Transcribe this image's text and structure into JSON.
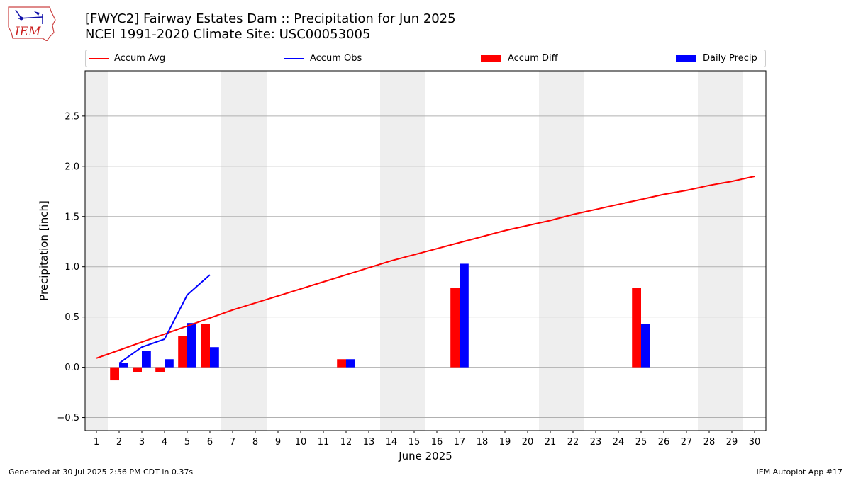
{
  "title": {
    "line1": "[FWYC2] Fairway Estates Dam :: Precipitation for Jun 2025",
    "line2": "NCEI 1991-2020 Climate Site: USC00053005"
  },
  "logo": {
    "text": "IEM"
  },
  "footer": {
    "left": "Generated at 30 Jul 2025 2:56 PM CDT in 0.37s",
    "right": "IEM Autoplot App #17"
  },
  "chart_data": {
    "type": "bar",
    "xlabel": "June 2025",
    "ylabel": "Precipitation [inch]",
    "xlim": [
      0.5,
      30.5
    ],
    "ylim": [
      -0.63,
      2.95
    ],
    "yticks": [
      -0.5,
      0.0,
      0.5,
      1.0,
      1.5,
      2.0,
      2.5
    ],
    "ytick_labels": [
      "−0.5",
      "0.0",
      "0.5",
      "1.0",
      "1.5",
      "2.0",
      "2.5"
    ],
    "xticks": [
      1,
      2,
      3,
      4,
      5,
      6,
      7,
      8,
      9,
      10,
      11,
      12,
      13,
      14,
      15,
      16,
      17,
      18,
      19,
      20,
      21,
      22,
      23,
      24,
      25,
      26,
      27,
      28,
      29,
      30
    ],
    "grid": "horizontal",
    "weekend_shading": [
      [
        0.5,
        1.5
      ],
      [
        6.5,
        8.5
      ],
      [
        13.5,
        15.5
      ],
      [
        20.5,
        22.5
      ],
      [
        27.5,
        29.5
      ]
    ],
    "legend": [
      {
        "name": "Accum Avg",
        "kind": "line",
        "color": "#ff0000"
      },
      {
        "name": "Accum Obs",
        "kind": "line",
        "color": "#0000ff"
      },
      {
        "name": "Accum Diff",
        "kind": "bar",
        "color": "#ff0000"
      },
      {
        "name": "Daily Precip",
        "kind": "bar",
        "color": "#0000ff"
      }
    ],
    "series": [
      {
        "name": "Accum Avg",
        "type": "line",
        "color": "#ff0000",
        "x": [
          1,
          2,
          3,
          4,
          5,
          6,
          7,
          8,
          9,
          10,
          11,
          12,
          13,
          14,
          15,
          16,
          17,
          18,
          19,
          20,
          21,
          22,
          23,
          24,
          25,
          26,
          27,
          28,
          29,
          30
        ],
        "values": [
          0.09,
          0.17,
          0.25,
          0.33,
          0.41,
          0.49,
          0.57,
          0.64,
          0.71,
          0.78,
          0.85,
          0.92,
          0.99,
          1.06,
          1.12,
          1.18,
          1.24,
          1.3,
          1.36,
          1.41,
          1.46,
          1.52,
          1.57,
          1.62,
          1.67,
          1.72,
          1.76,
          1.81,
          1.85,
          1.9
        ]
      },
      {
        "name": "Accum Obs",
        "type": "line",
        "color": "#0000ff",
        "x": [
          2,
          3,
          4,
          5,
          6
        ],
        "values": [
          0.04,
          0.2,
          0.28,
          0.72,
          0.92
        ]
      },
      {
        "name": "Accum Diff",
        "type": "bar",
        "color": "#ff0000",
        "x": [
          2,
          3,
          4,
          5,
          6,
          12,
          17,
          25
        ],
        "values": [
          -0.13,
          -0.05,
          -0.05,
          0.31,
          0.43,
          0.08,
          0.79,
          0.79
        ]
      },
      {
        "name": "Daily Precip",
        "type": "bar",
        "color": "#0000ff",
        "x": [
          2,
          3,
          4,
          5,
          6,
          12,
          17,
          25
        ],
        "values": [
          0.04,
          0.16,
          0.08,
          0.44,
          0.2,
          0.08,
          1.03,
          0.43
        ]
      }
    ]
  }
}
